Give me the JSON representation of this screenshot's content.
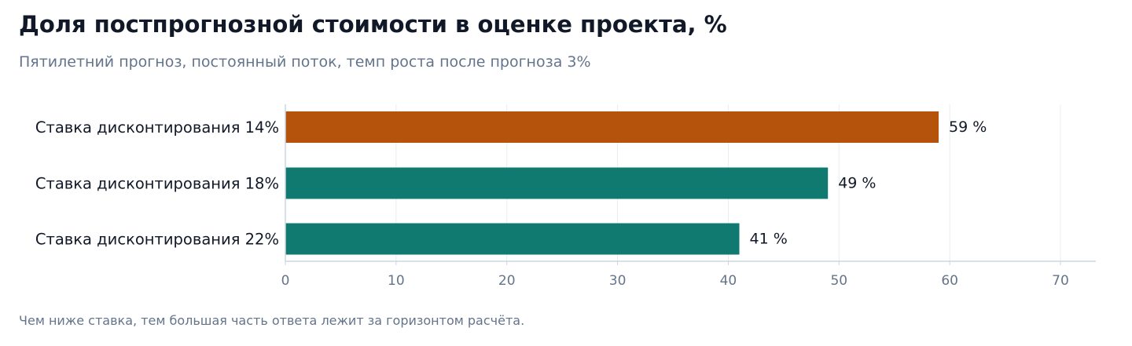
{
  "chart_data": {
    "type": "bar",
    "orientation": "horizontal",
    "title": "Доля постпрогнозной стоимости в оценке проекта, %",
    "subtitle": "Пятилетний прогноз, постоянный поток, темп роста после прогноза 3%",
    "footnote": "Чем ниже ставка, тем большая часть ответа лежит за горизонтом расчёта.",
    "categories": [
      "Ставка дисконтирования 14%",
      "Ставка дисконтирования 18%",
      "Ставка дисконтирования 22%"
    ],
    "values": [
      59,
      49,
      41
    ],
    "data_labels": [
      "59 %",
      "49 %",
      "41 %"
    ],
    "bar_colors": [
      "#b5530d",
      "#117a70",
      "#117a70"
    ],
    "xlim": [
      0,
      73
    ],
    "xticks": [
      0,
      10,
      20,
      30,
      40,
      50,
      60,
      70
    ],
    "xtick_labels": [
      "0",
      "10",
      "20",
      "30",
      "40",
      "50",
      "60",
      "70"
    ],
    "grid": true,
    "xlabel": "",
    "ylabel": ""
  }
}
